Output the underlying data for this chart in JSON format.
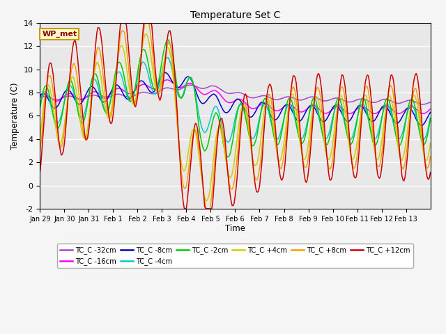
{
  "title": "Temperature Set C",
  "xlabel": "Time",
  "ylabel": "Temperature (C)",
  "ylim": [
    -2,
    14
  ],
  "background_color": "#e8e8e8",
  "series_colors": {
    "TC_C -32cm": "#aa44cc",
    "TC_C -16cm": "#ff00ff",
    "TC_C -8cm": "#0000cc",
    "TC_C -4cm": "#00cccc",
    "TC_C -2cm": "#00cc00",
    "TC_C +4cm": "#cccc00",
    "TC_C +8cm": "#ff9900",
    "TC_C +12cm": "#cc0000"
  },
  "xtick_labels": [
    "Jan 29",
    "Jan 30",
    "Jan 31",
    "Feb 1",
    "Feb 2",
    "Feb 3",
    "Feb 4",
    "Feb 5",
    "Feb 6",
    "Feb 7",
    "Feb 8",
    "Feb 9",
    "Feb 10",
    "Feb 11",
    "Feb 12",
    "Feb 13"
  ],
  "yticks": [
    -2,
    0,
    2,
    4,
    6,
    8,
    10,
    12,
    14
  ],
  "annotation": {
    "text": "WP_met",
    "bg": "#ffffcc",
    "edge": "#cc9900"
  }
}
